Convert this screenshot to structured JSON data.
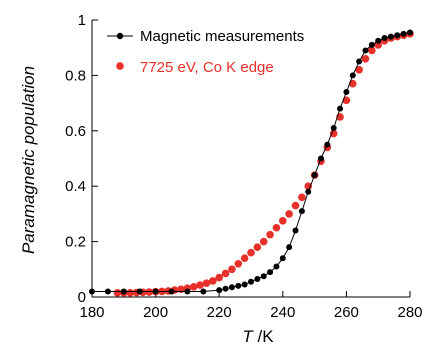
{
  "chart_data": {
    "type": "scatter",
    "title": "",
    "xlabel_italic": "T",
    "xlabel_unit": " /K",
    "ylabel": "Paramagnetic population",
    "xlim": [
      180,
      280
    ],
    "ylim": [
      0,
      1
    ],
    "xticks": [
      "180",
      "200",
      "220",
      "240",
      "260",
      "280"
    ],
    "yticks": [
      "0",
      "0.2",
      "0.4",
      "0.6",
      "0.8",
      "1"
    ],
    "grid": false,
    "legend_position": "top-left",
    "series": [
      {
        "name": "Magnetic measurements",
        "style": "line-with-markers",
        "color": "#000000",
        "x": [
          180,
          185,
          190,
          195,
          200,
          205,
          210,
          215,
          220,
          222,
          224,
          226,
          228,
          230,
          232,
          234,
          236,
          238,
          240,
          242,
          244,
          246,
          248,
          250,
          252,
          254,
          256,
          258,
          260,
          262,
          264,
          266,
          268,
          270,
          272,
          274,
          276,
          278,
          280
        ],
        "y": [
          0.02,
          0.02,
          0.02,
          0.02,
          0.02,
          0.02,
          0.02,
          0.02,
          0.025,
          0.03,
          0.035,
          0.04,
          0.045,
          0.055,
          0.065,
          0.075,
          0.09,
          0.11,
          0.14,
          0.18,
          0.24,
          0.31,
          0.38,
          0.44,
          0.5,
          0.55,
          0.61,
          0.68,
          0.74,
          0.8,
          0.85,
          0.89,
          0.91,
          0.925,
          0.935,
          0.94,
          0.945,
          0.95,
          0.955
        ]
      },
      {
        "name": "7725 eV, Co K edge",
        "style": "markers",
        "color": "#e8302a",
        "x": [
          188,
          190,
          192,
          194,
          196,
          198,
          200,
          202,
          204,
          206,
          208,
          210,
          212,
          214,
          216,
          218,
          220,
          222,
          224,
          226,
          228,
          230,
          232,
          234,
          236,
          238,
          240,
          242,
          244,
          246,
          248,
          250,
          252,
          254,
          256,
          258,
          260,
          262,
          264,
          266,
          268,
          270,
          272,
          274,
          276,
          278,
          280
        ],
        "y": [
          0.015,
          0.015,
          0.015,
          0.016,
          0.017,
          0.018,
          0.019,
          0.02,
          0.022,
          0.025,
          0.028,
          0.032,
          0.037,
          0.043,
          0.05,
          0.058,
          0.07,
          0.085,
          0.1,
          0.12,
          0.14,
          0.16,
          0.18,
          0.2,
          0.225,
          0.25,
          0.275,
          0.3,
          0.33,
          0.36,
          0.4,
          0.44,
          0.49,
          0.54,
          0.59,
          0.65,
          0.71,
          0.77,
          0.82,
          0.86,
          0.89,
          0.91,
          0.925,
          0.935,
          0.94,
          0.945,
          0.95
        ]
      }
    ]
  }
}
